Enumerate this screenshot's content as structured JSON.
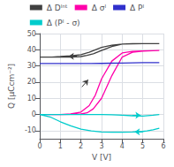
{
  "chart_data": {
    "type": "line",
    "xlabel": "V [V]",
    "ylabel": "Q [μCcm⁻²]",
    "xlim": [
      0,
      6
    ],
    "ylim": [
      -15,
      50
    ],
    "xticks": [
      0,
      1,
      2,
      3,
      4,
      5,
      6
    ],
    "yticks": [
      -10,
      0,
      10,
      20,
      30,
      40,
      50
    ],
    "grid": true,
    "legend": "top",
    "series": [
      {
        "name": "Δ Dᴵⁿᵗ",
        "color": "#404040",
        "x": [
          0.0,
          0.3,
          0.6,
          1.0,
          1.5,
          2.0,
          2.3,
          2.6,
          3.0,
          3.5,
          4.0,
          4.5,
          5.0,
          5.5,
          5.8,
          null,
          5.8,
          5.5,
          5.0,
          4.5,
          4.0,
          3.5,
          3.0,
          2.7,
          2.4,
          2.0,
          1.5,
          1.0,
          0.6,
          0.3,
          0.0
        ],
        "values": [
          35.5,
          35.5,
          35.5,
          35.5,
          35.5,
          35.8,
          36.5,
          37.5,
          39.5,
          42.0,
          43.5,
          43.8,
          43.8,
          43.8,
          43.8,
          null,
          43.8,
          43.8,
          43.8,
          43.7,
          43.5,
          42.8,
          41.5,
          40.0,
          38.5,
          37.0,
          36.2,
          35.8,
          35.5,
          35.5,
          35.5
        ],
        "arrows": [
          {
            "x": [
              1.8,
              1.4
            ],
            "y": [
              36.0,
              36.0
            ]
          },
          {
            "x": [
              2.05,
              2.35
            ],
            "y": [
              17.0,
              21.5
            ]
          }
        ]
      },
      {
        "name": "Δ σᴵ",
        "color": "#ff00aa",
        "x": [
          0.0,
          0.3,
          0.6,
          1.0,
          1.5,
          2.0,
          2.3,
          2.6,
          3.0,
          3.5,
          4.0,
          4.5,
          5.0,
          5.5,
          5.8,
          null,
          5.8,
          5.5,
          5.0,
          4.5,
          4.0,
          3.5,
          3.0,
          2.7,
          2.4,
          2.0,
          1.5,
          1.0,
          0.6,
          0.3,
          0.0
        ],
        "values": [
          0.0,
          0.0,
          0.0,
          0.0,
          0.1,
          0.3,
          1.0,
          3.5,
          10.0,
          24.0,
          35.5,
          38.5,
          39.2,
          39.4,
          39.5,
          null,
          39.5,
          39.4,
          39.3,
          39.0,
          38.0,
          33.0,
          22.0,
          12.0,
          5.5,
          1.5,
          0.3,
          0.0,
          0.0,
          0.0,
          0.0
        ]
      },
      {
        "name": "Δ Pᴵ",
        "color": "#3030cc",
        "x": [
          0.0,
          0.5,
          1.0,
          1.5,
          2.0,
          2.5,
          3.0,
          3.5,
          4.0,
          4.5,
          5.0,
          5.5,
          5.8,
          null,
          5.8,
          5.5,
          5.0,
          4.5,
          4.0,
          3.5,
          3.0,
          2.5,
          2.0,
          1.5,
          1.0,
          0.5,
          0.0
        ],
        "values": [
          31.5,
          31.5,
          31.5,
          31.5,
          31.5,
          31.5,
          31.5,
          31.6,
          31.8,
          31.9,
          32.0,
          32.0,
          32.0,
          null,
          32.0,
          32.0,
          32.0,
          31.9,
          31.8,
          31.7,
          31.6,
          31.5,
          31.5,
          31.5,
          31.5,
          31.5,
          31.5
        ]
      },
      {
        "name": "Δ (Pᴵ - σ)",
        "color": "#00cccc",
        "x": [
          0.0,
          0.5,
          1.0,
          1.5,
          2.0,
          2.5,
          3.0,
          3.5,
          4.0,
          4.5,
          5.0,
          5.5,
          5.8,
          null,
          5.8,
          5.5,
          5.2,
          5.0,
          4.5,
          4.0,
          3.5,
          3.0,
          2.5,
          2.0,
          1.5,
          1.0,
          0.5,
          0.0
        ],
        "values": [
          0.0,
          0.0,
          0.0,
          0.0,
          0.0,
          0.0,
          0.0,
          -0.2,
          -0.5,
          -0.8,
          -1.0,
          -0.5,
          0.0,
          null,
          -8.5,
          -9.5,
          -10.2,
          -10.5,
          -10.8,
          -11.0,
          -11.0,
          -10.8,
          -10.2,
          -9.0,
          -7.0,
          -4.5,
          -1.5,
          0.0
        ],
        "arrows": [
          {
            "x": [
              5.0,
              4.6
            ],
            "y": [
              -10.8,
              -10.8
            ]
          },
          {
            "x": [
              4.5,
              4.9
            ],
            "y": [
              -0.5,
              -0.5
            ]
          }
        ]
      }
    ]
  }
}
